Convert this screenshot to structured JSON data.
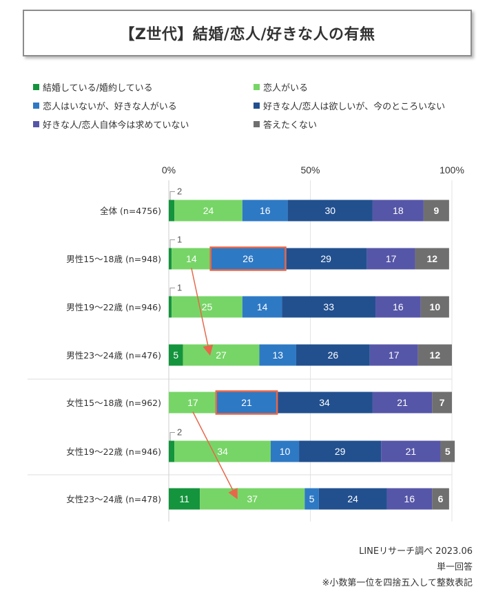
{
  "title": "【Z世代】結婚/恋人/好きな人の有無",
  "legend": [
    {
      "label": "結婚している/婚約している",
      "color": "#14943c"
    },
    {
      "label": "恋人がいる",
      "color": "#77d567"
    },
    {
      "label": "恋人はいないが、好きな人がいる",
      "color": "#2e79c4"
    },
    {
      "label": "好きな人/恋人は欲しいが、今のところいない",
      "color": "#22508f"
    },
    {
      "label": "好きな人/恋人自体今は求めていない",
      "color": "#5656a8"
    },
    {
      "label": "答えたくない",
      "color": "#6f6f6f"
    }
  ],
  "chart_data": {
    "type": "bar",
    "orientation": "horizontal",
    "stacked": true,
    "xlim": [
      0,
      100
    ],
    "x_ticks": [
      "0%",
      "50%",
      "100%"
    ],
    "categories": [
      "全体 (n=4756)",
      "男性15～18歳 (n=948)",
      "男性19～22歳 (n=946)",
      "男性23～24歳 (n=476)",
      "女性15～18歳 (n=962)",
      "女性19～22歳 (n=946)",
      "女性23～24歳 (n=478)"
    ],
    "series": [
      {
        "name": "結婚している/婚約している",
        "values": [
          2,
          1,
          1,
          5,
          0,
          2,
          11
        ]
      },
      {
        "name": "恋人がいる",
        "values": [
          24,
          14,
          25,
          27,
          17,
          34,
          37
        ]
      },
      {
        "name": "恋人はいないが、好きな人がいる",
        "values": [
          16,
          26,
          14,
          13,
          21,
          10,
          5
        ]
      },
      {
        "name": "好きな人/恋人は欲しいが、今のところいない",
        "values": [
          30,
          29,
          33,
          26,
          34,
          29,
          24
        ]
      },
      {
        "name": "好きな人/恋人自体今は求めていない",
        "values": [
          18,
          17,
          16,
          17,
          21,
          21,
          16
        ]
      },
      {
        "name": "答えたくない",
        "values": [
          9,
          12,
          10,
          12,
          7,
          5,
          6
        ]
      }
    ],
    "highlights": [
      {
        "row": 1,
        "series": 2
      },
      {
        "row": 4,
        "series": 2
      }
    ],
    "arrows": [
      {
        "from_row": 1,
        "to_row": 3,
        "series": 1
      },
      {
        "from_row": 4,
        "to_row": 6,
        "series": 1
      }
    ],
    "highlight_color": "#e8674a"
  },
  "footer": {
    "source": "LINEリサーチ調べ 2023.06",
    "answer_type": "単一回答",
    "note": "※小数第一位を四捨五入して整数表記"
  }
}
